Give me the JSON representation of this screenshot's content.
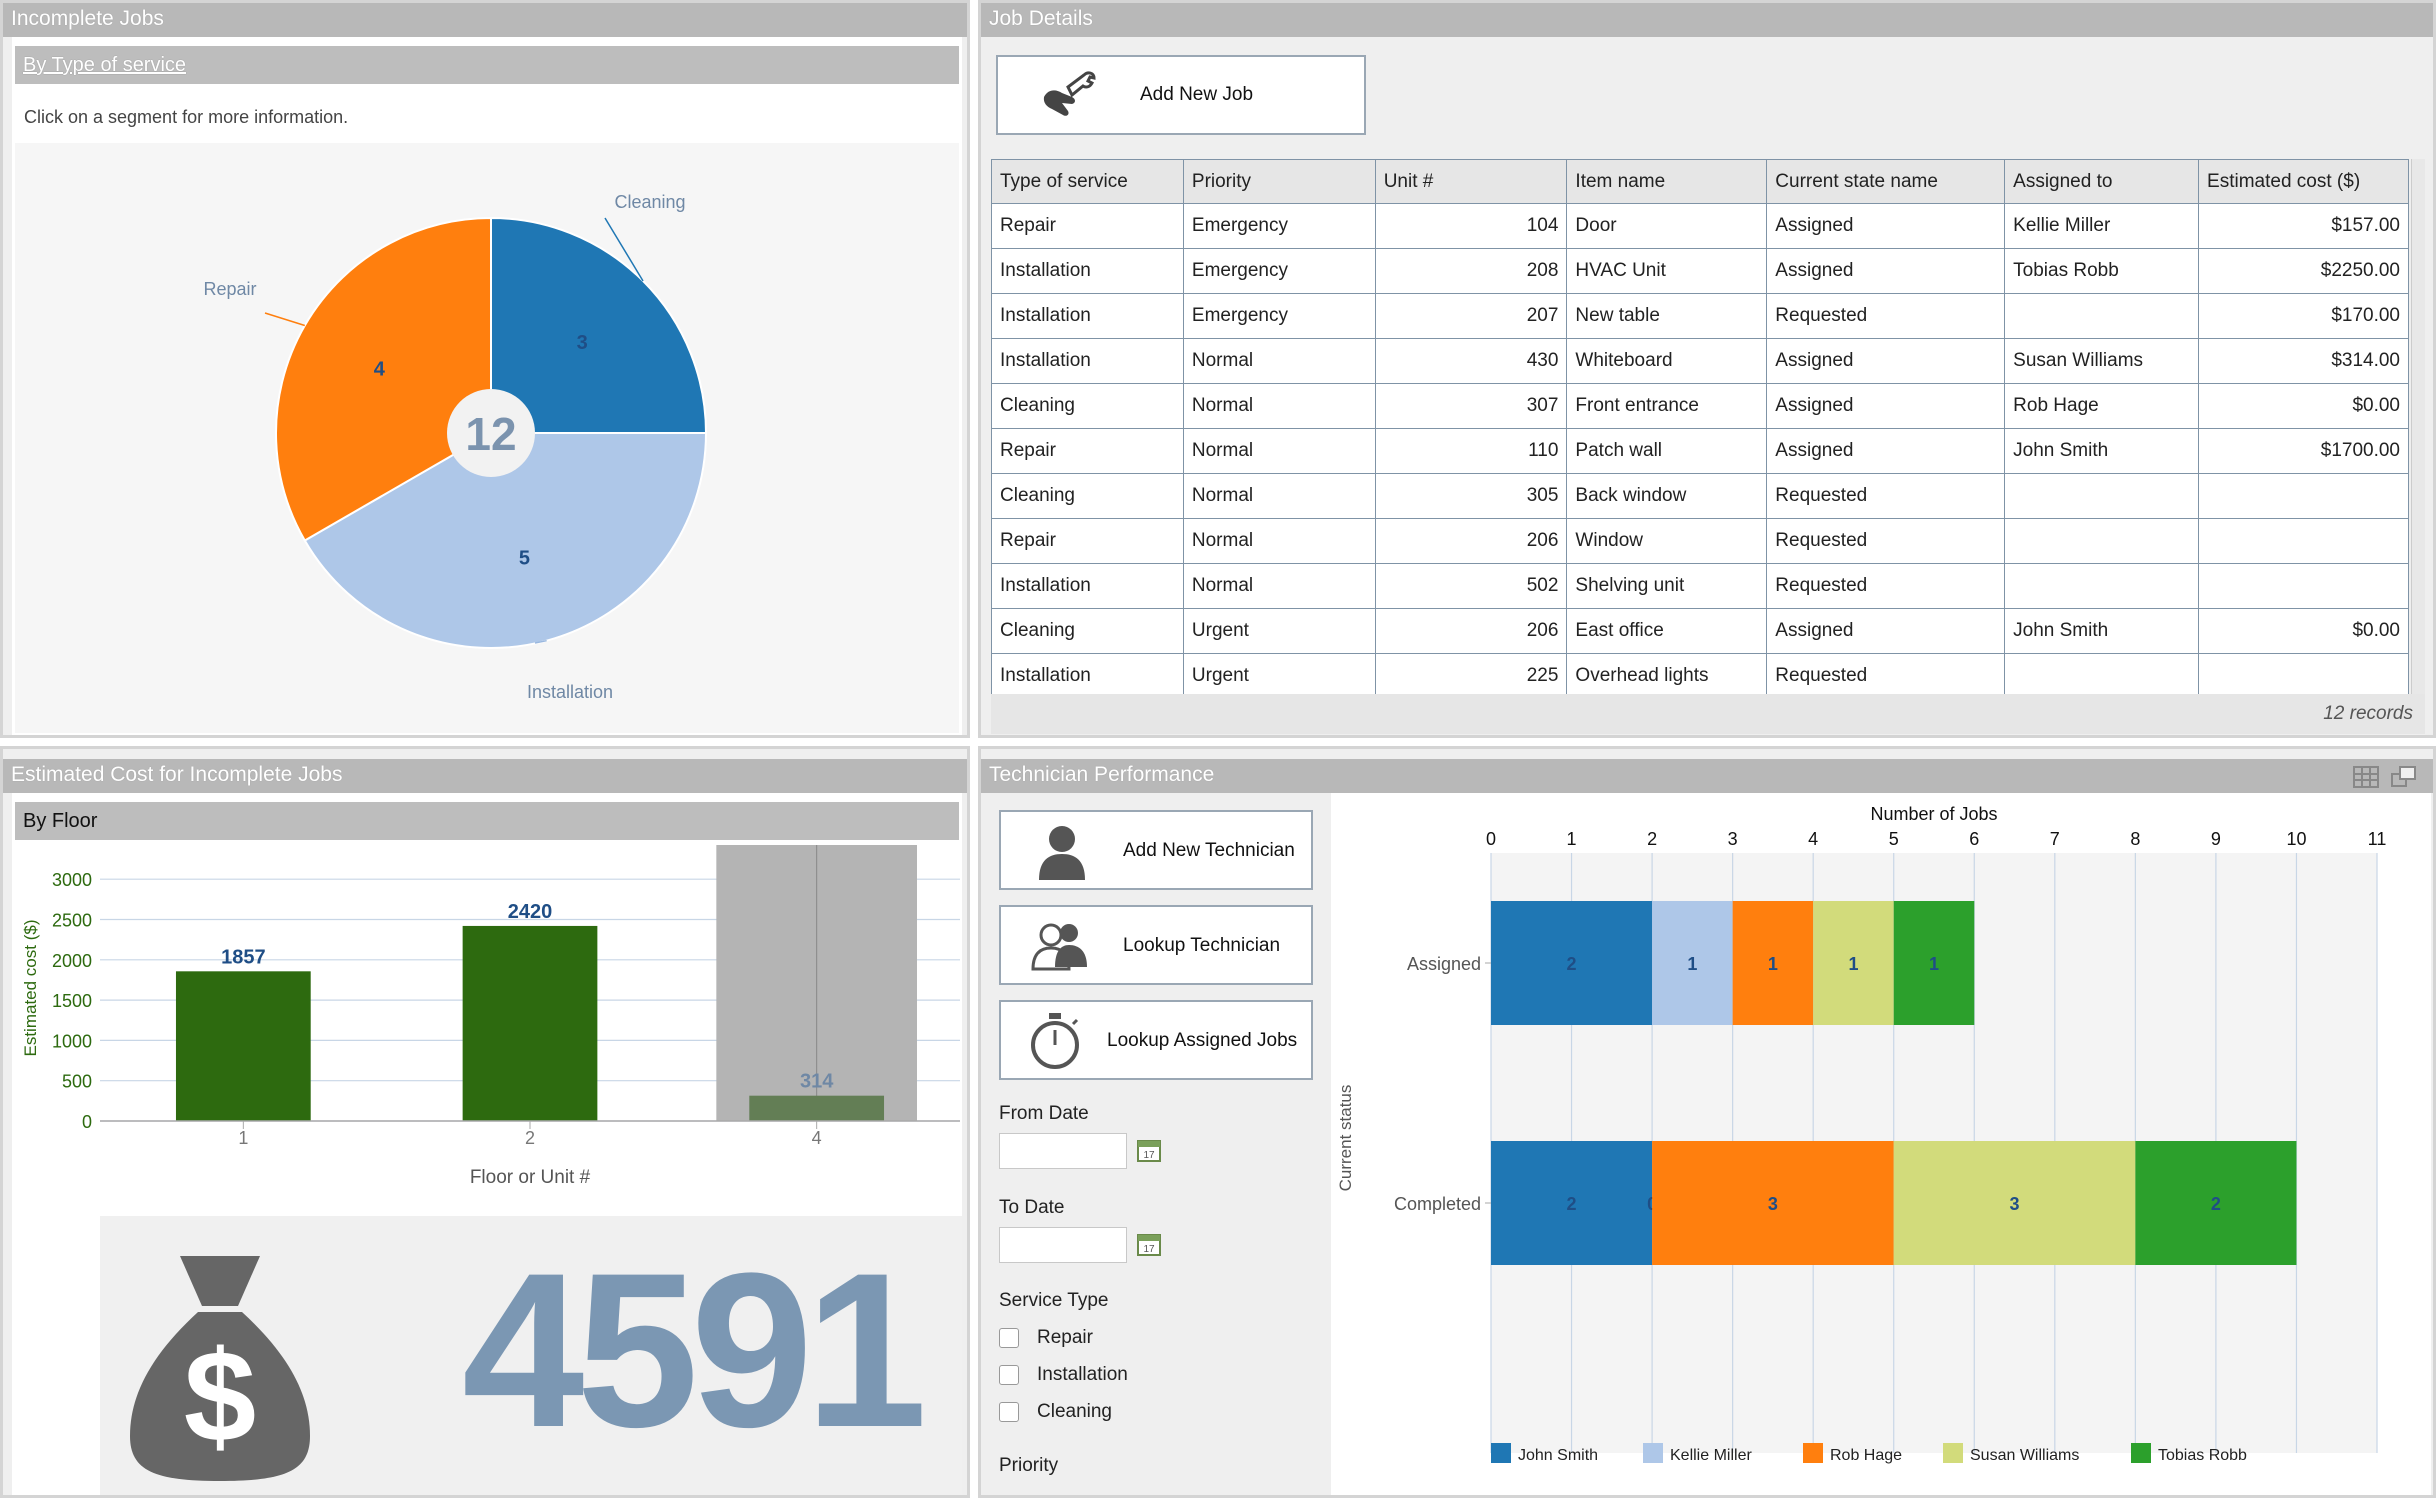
{
  "incomplete_jobs": {
    "title": "Incomplete Jobs",
    "subtitle": "By Type of service",
    "hint": "Click on a segment for more information.",
    "total": "12",
    "chart_data": {
      "type": "pie",
      "slices": [
        {
          "label": "Cleaning",
          "value": 3,
          "color": "#1f77b4"
        },
        {
          "label": "Installation",
          "value": 5,
          "color": "#aec7e8"
        },
        {
          "label": "Repair",
          "value": 4,
          "color": "#ff7f0e"
        }
      ]
    }
  },
  "job_details": {
    "title": "Job Details",
    "add_button": "Add New Job",
    "columns": [
      "Type of service",
      "Priority",
      "Unit #",
      "Item name",
      "Current state name",
      "Assigned to",
      "Estimated cost ($)"
    ],
    "rows": [
      [
        "Repair",
        "Emergency",
        "104",
        "Door",
        "Assigned",
        "Kellie Miller",
        "$157.00"
      ],
      [
        "Installation",
        "Emergency",
        "208",
        "HVAC Unit",
        "Assigned",
        "Tobias Robb",
        "$2250.00"
      ],
      [
        "Installation",
        "Emergency",
        "207",
        "New table",
        "Requested",
        "",
        "$170.00"
      ],
      [
        "Installation",
        "Normal",
        "430",
        "Whiteboard",
        "Assigned",
        "Susan Williams",
        "$314.00"
      ],
      [
        "Cleaning",
        "Normal",
        "307",
        "Front entrance",
        "Assigned",
        "Rob Hage",
        "$0.00"
      ],
      [
        "Repair",
        "Normal",
        "110",
        "Patch wall",
        "Assigned",
        "John Smith",
        "$1700.00"
      ],
      [
        "Cleaning",
        "Normal",
        "305",
        "Back window",
        "Requested",
        "",
        ""
      ],
      [
        "Repair",
        "Normal",
        "206",
        "Window",
        "Requested",
        "",
        ""
      ],
      [
        "Installation",
        "Normal",
        "502",
        "Shelving unit",
        "Requested",
        "",
        ""
      ],
      [
        "Cleaning",
        "Urgent",
        "206",
        "East office",
        "Assigned",
        "John Smith",
        "$0.00"
      ],
      [
        "Installation",
        "Urgent",
        "225",
        "Overhead lights",
        "Requested",
        "",
        ""
      ]
    ],
    "records": "12 records"
  },
  "estimated_cost": {
    "title": "Estimated Cost for Incomplete Jobs",
    "subtitle": "By Floor",
    "total": "4591",
    "chart_data": {
      "type": "bar",
      "categories": [
        "1",
        "2",
        "4"
      ],
      "values": [
        1857,
        2420,
        314
      ],
      "color": "#2d6a0f",
      "highlight_color": "#637e55",
      "highlighted_index": 2,
      "ylabel": "Estimated cost ($)",
      "xlabel": "Floor or Unit #",
      "yticks": [
        0,
        500,
        1000,
        1500,
        2000,
        2500,
        3000
      ],
      "ylim": [
        0,
        3300
      ]
    }
  },
  "technician": {
    "title": "Technician Performance",
    "buttons": {
      "add": "Add New Technician",
      "lookup": "Lookup Technician",
      "assigned": "Lookup Assigned Jobs"
    },
    "from_date": "From Date",
    "to_date": "To Date",
    "service_type": "Service Type",
    "service_options": [
      "Repair",
      "Installation",
      "Cleaning"
    ],
    "priority": "Priority",
    "chart_data": {
      "type": "bar",
      "orientation": "horizontal-stacked",
      "title": "Number of Jobs",
      "ylabel": "Current status",
      "xlim": [
        0,
        11
      ],
      "xticks": [
        0,
        1,
        2,
        3,
        4,
        5,
        6,
        7,
        8,
        9,
        10,
        11
      ],
      "categories": [
        "Assigned",
        "Completed"
      ],
      "series": [
        {
          "name": "John Smith",
          "color": "#1f77b4",
          "values": [
            2,
            2
          ]
        },
        {
          "name": "Kellie Miller",
          "color": "#aec7e8",
          "values": [
            1,
            0
          ]
        },
        {
          "name": "Rob Hage",
          "color": "#ff7f0e",
          "values": [
            1,
            3
          ]
        },
        {
          "name": "Susan Williams",
          "color": "#d2db7b",
          "values": [
            1,
            3
          ]
        },
        {
          "name": "Tobias Robb",
          "color": "#2ca02c",
          "values": [
            1,
            2
          ]
        }
      ]
    }
  }
}
